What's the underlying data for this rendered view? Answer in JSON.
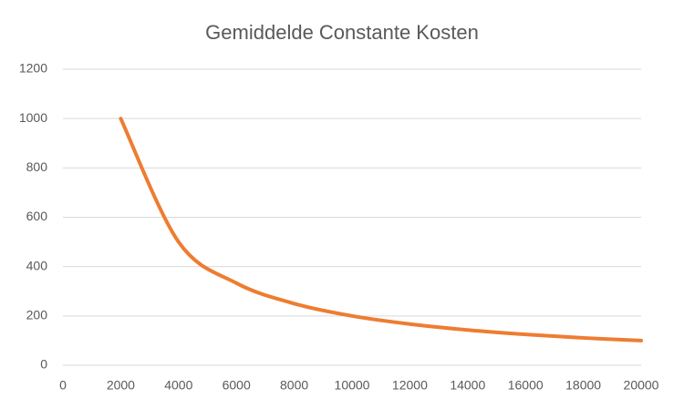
{
  "chart_data": {
    "type": "line",
    "title": "Gemiddelde Constante Kosten",
    "x": [
      2000,
      4000,
      6000,
      8000,
      10000,
      12000,
      14000,
      16000,
      18000,
      20000
    ],
    "series": [
      {
        "name": "Gemiddelde Constante Kosten",
        "color": "#ed7d31",
        "values": [
          1000,
          500,
          333,
          250,
          200,
          167,
          143,
          125,
          111,
          100
        ]
      }
    ],
    "xlim": [
      0,
      20000
    ],
    "xticks": [
      0,
      2000,
      4000,
      6000,
      8000,
      10000,
      12000,
      14000,
      16000,
      18000,
      20000
    ],
    "ylim": [
      0,
      1200
    ],
    "yticks": [
      0,
      200,
      400,
      600,
      800,
      1000,
      1200
    ],
    "grid": true,
    "smooth": true
  }
}
